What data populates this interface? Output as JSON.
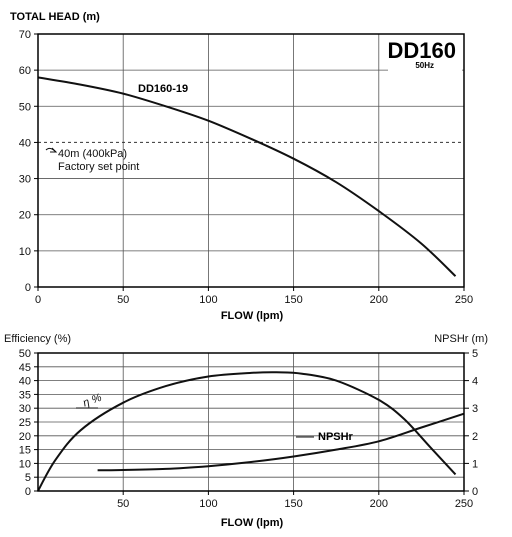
{
  "chart_data": [
    {
      "type": "line",
      "model": "DD160",
      "frequency": "50Hz",
      "ylabel": "TOTAL HEAD (m)",
      "xlabel": "FLOW (lpm)",
      "xlim": [
        0,
        250
      ],
      "ylim": [
        0,
        70
      ],
      "xticks": [
        0,
        50,
        100,
        150,
        200,
        250
      ],
      "yticks": [
        0,
        10,
        20,
        30,
        40,
        50,
        60,
        70
      ],
      "grid": true,
      "series": [
        {
          "name": "DD160-19",
          "x": [
            0,
            25,
            50,
            75,
            100,
            125,
            150,
            175,
            200,
            225,
            245
          ],
          "y": [
            58,
            56,
            53.5,
            50,
            46,
            41,
            35.5,
            29,
            21,
            12,
            3
          ]
        }
      ],
      "reference_line": {
        "y": 40,
        "label1": "40m (400kPa)",
        "label2": "Factory set point"
      }
    },
    {
      "type": "line",
      "ylabel_left": "Efficiency (%)",
      "ylabel_right": "NPSHr  (m)",
      "xlabel": "FLOW (lpm)",
      "xlim": [
        0,
        250
      ],
      "ylim_left": [
        0,
        50
      ],
      "ylim_right": [
        0,
        5
      ],
      "xticks": [
        50,
        100,
        150,
        200,
        250
      ],
      "yticks_left": [
        0,
        5,
        10,
        15,
        20,
        25,
        30,
        35,
        40,
        45,
        50
      ],
      "yticks_right": [
        0,
        1,
        2,
        3,
        4,
        5
      ],
      "grid": true,
      "series": [
        {
          "name": "η %",
          "axis": "left",
          "x": [
            0,
            10,
            25,
            50,
            75,
            100,
            125,
            140,
            155,
            175,
            200,
            215,
            230,
            245
          ],
          "y": [
            0,
            11,
            22,
            32,
            38,
            41.5,
            42.8,
            43,
            42.5,
            40,
            33,
            26,
            16,
            6
          ]
        },
        {
          "name": "NPSHr",
          "axis": "right",
          "x": [
            35,
            50,
            75,
            100,
            125,
            150,
            175,
            200,
            225,
            250
          ],
          "y": [
            0.75,
            0.76,
            0.8,
            0.9,
            1.05,
            1.25,
            1.5,
            1.8,
            2.3,
            2.8
          ]
        }
      ]
    }
  ]
}
